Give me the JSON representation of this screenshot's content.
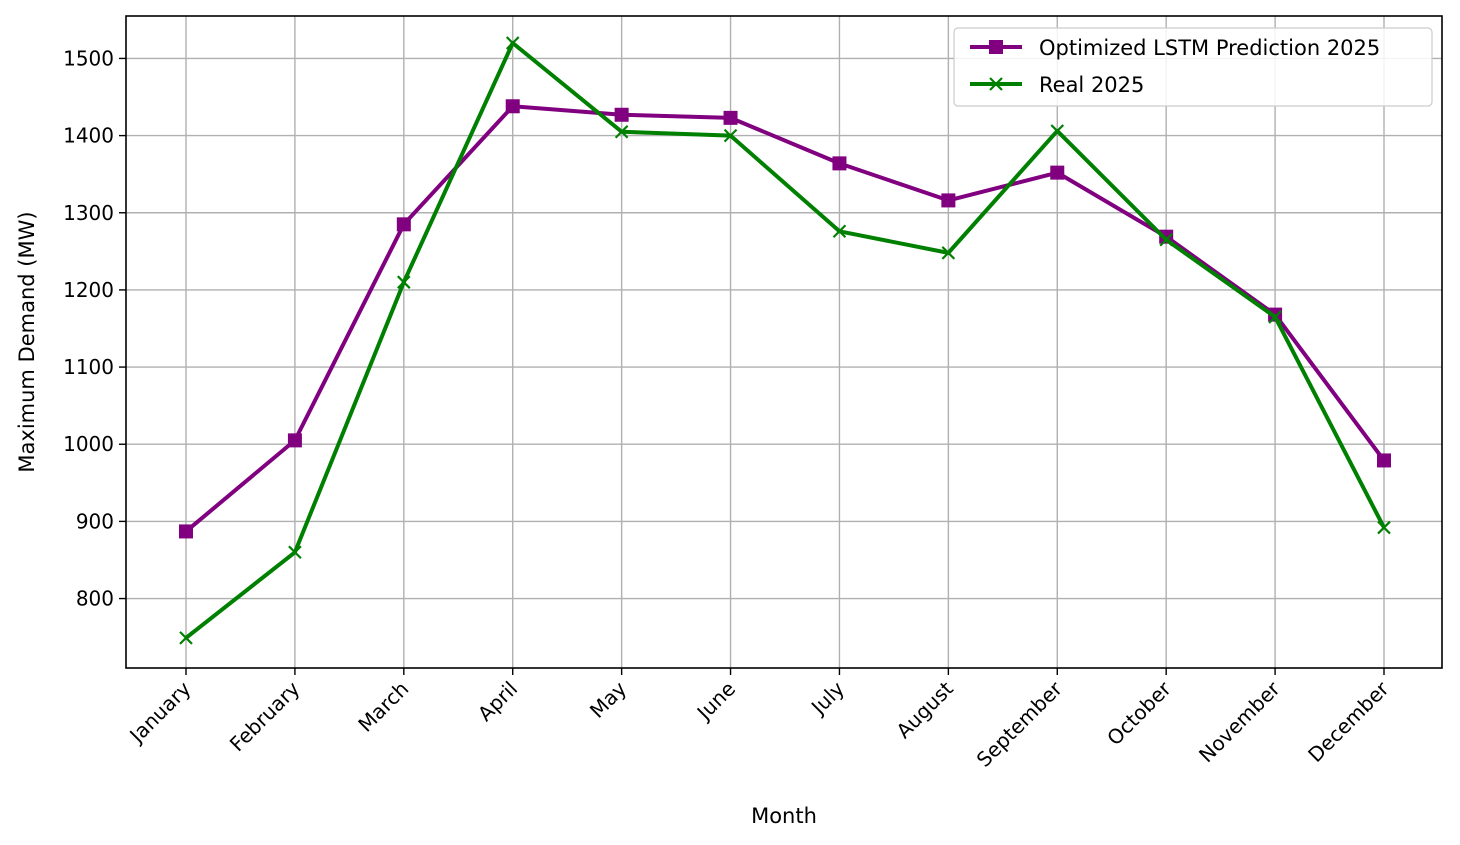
{
  "chart_data": {
    "type": "line",
    "title": "",
    "xlabel": "Month",
    "ylabel": "Maximum Demand (MW)",
    "categories": [
      "January",
      "February",
      "March",
      "April",
      "May",
      "June",
      "July",
      "August",
      "September",
      "October",
      "November",
      "December"
    ],
    "ylim": [
      710,
      1555
    ],
    "yticks": [
      800,
      900,
      1000,
      1100,
      1200,
      1300,
      1400,
      1500
    ],
    "grid": true,
    "legend_position": "top-right",
    "series": [
      {
        "name": "Optimized LSTM Prediction 2025",
        "color": "#800080",
        "marker": "square",
        "values": [
          887,
          1005,
          1285,
          1438,
          1427,
          1423,
          1364,
          1316,
          1352,
          1269,
          1168,
          979
        ]
      },
      {
        "name": "Real 2025",
        "color": "#008000",
        "marker": "x",
        "values": [
          749,
          860,
          1210,
          1520,
          1405,
          1400,
          1276,
          1248,
          1406,
          1265,
          1165,
          892
        ]
      }
    ]
  }
}
